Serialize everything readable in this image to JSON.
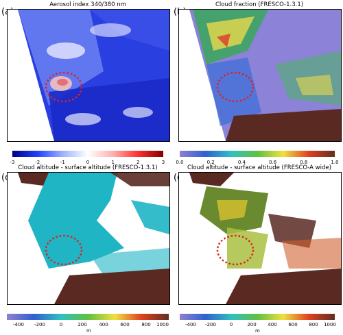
{
  "panels": {
    "a": {
      "letter": "(a)",
      "title": "Aerosol index 340/380 nm"
    },
    "b": {
      "letter": "(b)",
      "title": "Cloud fraction (FRESCO-1.3.1)"
    },
    "c": {
      "letter": "(c)",
      "title": "Cloud altitude - surface altitude (FRESCO-1.3.1)"
    },
    "d": {
      "letter": "(d)",
      "title": "Cloud altitude - surface altitude (FRESCO-A wide)"
    }
  },
  "colorbars": {
    "ai": {
      "ticks": [
        "-3",
        "-2",
        "-1",
        "0",
        "1",
        "2",
        "3"
      ]
    },
    "cf": {
      "ticks": [
        "0.0",
        "0.2",
        "0.4",
        "0.6",
        "0.8",
        "1.0"
      ]
    },
    "alt": {
      "ticks": [
        "-400",
        "-200",
        "0",
        "200",
        "400",
        "600",
        "800",
        "1000"
      ],
      "unit": "m"
    }
  },
  "colors": {
    "ai_negative": "#2233cc",
    "ai_positive": "#cc2222",
    "land": "#5a2a22",
    "low_cloud": "#1fb5c4",
    "highlight_circle": "#e02020"
  }
}
